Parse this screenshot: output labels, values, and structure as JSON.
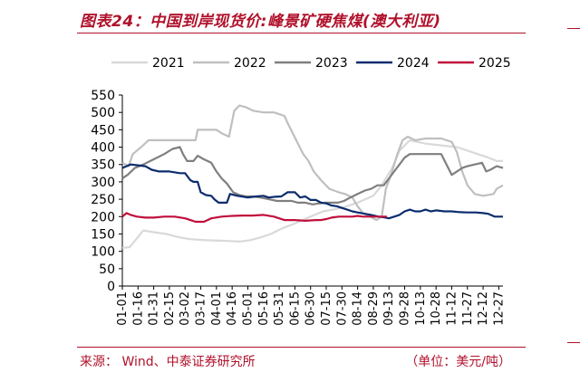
{
  "header": {
    "title": "图表24：中国到岸现货价:峰景矿硬焦煤(澳大利亚)"
  },
  "footer": {
    "source": "来源：  Wind、中泰证券研究所",
    "unit": "（单位：美元/吨）"
  },
  "colors": {
    "accent": "#b0112b",
    "s2021": "#d9d9d9",
    "s2022": "#bfbfbf",
    "s2023": "#7f7f7f",
    "s2024": "#0c2c6e",
    "s2025": "#c00f3c"
  },
  "chart_data": {
    "type": "line",
    "title": "",
    "xlabel": "",
    "ylabel": "",
    "ylim": [
      0,
      550
    ],
    "yticks": [
      0,
      50,
      100,
      150,
      200,
      250,
      300,
      350,
      400,
      450,
      500,
      550
    ],
    "x_tick_labels": [
      "01-01",
      "01-16",
      "01-31",
      "02-15",
      "03-02",
      "03-17",
      "04-01",
      "04-16",
      "05-01",
      "05-16",
      "05-31",
      "06-15",
      "06-30",
      "07-15",
      "07-30",
      "08-14",
      "08-29",
      "09-13",
      "09-28",
      "10-13",
      "10-28",
      "11-12",
      "11-27",
      "12-12",
      "12-27"
    ],
    "legend_position": "top",
    "grid": false,
    "series": [
      {
        "name": "2021",
        "color": "#d9d9d9",
        "points": [
          [
            0,
            110
          ],
          [
            7,
            112
          ],
          [
            12,
            130
          ],
          [
            20,
            160
          ],
          [
            30,
            155
          ],
          [
            42,
            150
          ],
          [
            55,
            140
          ],
          [
            65,
            135
          ],
          [
            80,
            132
          ],
          [
            100,
            130
          ],
          [
            112,
            128
          ],
          [
            122,
            132
          ],
          [
            132,
            140
          ],
          [
            142,
            150
          ],
          [
            152,
            165
          ],
          [
            165,
            180
          ],
          [
            180,
            200
          ],
          [
            192,
            215
          ],
          [
            210,
            225
          ],
          [
            225,
            240
          ],
          [
            240,
            260
          ],
          [
            248,
            290
          ],
          [
            258,
            340
          ],
          [
            265,
            390
          ],
          [
            275,
            420
          ],
          [
            290,
            410
          ],
          [
            305,
            405
          ],
          [
            320,
            400
          ],
          [
            335,
            385
          ],
          [
            350,
            370
          ],
          [
            358,
            360
          ],
          [
            364,
            360
          ]
        ]
      },
      {
        "name": "2022",
        "color": "#bfbfbf",
        "points": [
          [
            0,
            355
          ],
          [
            6,
            345
          ],
          [
            10,
            380
          ],
          [
            18,
            400
          ],
          [
            25,
            420
          ],
          [
            35,
            420
          ],
          [
            45,
            420
          ],
          [
            55,
            420
          ],
          [
            60,
            420
          ],
          [
            70,
            420
          ],
          [
            72,
            450
          ],
          [
            80,
            450
          ],
          [
            90,
            450
          ],
          [
            95,
            440
          ],
          [
            102,
            430
          ],
          [
            107,
            505
          ],
          [
            112,
            520
          ],
          [
            118,
            515
          ],
          [
            125,
            505
          ],
          [
            135,
            500
          ],
          [
            145,
            500
          ],
          [
            155,
            490
          ],
          [
            158,
            470
          ],
          [
            163,
            440
          ],
          [
            168,
            410
          ],
          [
            173,
            380
          ],
          [
            178,
            360
          ],
          [
            183,
            330
          ],
          [
            190,
            305
          ],
          [
            198,
            280
          ],
          [
            207,
            270
          ],
          [
            213,
            265
          ],
          [
            220,
            255
          ],
          [
            225,
            230
          ],
          [
            230,
            210
          ],
          [
            237,
            200
          ],
          [
            243,
            190
          ],
          [
            248,
            200
          ],
          [
            252,
            280
          ],
          [
            258,
            330
          ],
          [
            263,
            380
          ],
          [
            268,
            420
          ],
          [
            273,
            430
          ],
          [
            280,
            420
          ],
          [
            290,
            425
          ],
          [
            305,
            425
          ],
          [
            315,
            415
          ],
          [
            320,
            385
          ],
          [
            325,
            330
          ],
          [
            330,
            290
          ],
          [
            337,
            265
          ],
          [
            345,
            260
          ],
          [
            355,
            265
          ],
          [
            358,
            280
          ],
          [
            364,
            290
          ]
        ]
      },
      {
        "name": "2023",
        "color": "#7f7f7f",
        "points": [
          [
            0,
            310
          ],
          [
            5,
            320
          ],
          [
            12,
            340
          ],
          [
            20,
            350
          ],
          [
            30,
            365
          ],
          [
            40,
            380
          ],
          [
            48,
            395
          ],
          [
            55,
            400
          ],
          [
            58,
            380
          ],
          [
            62,
            360
          ],
          [
            68,
            360
          ],
          [
            72,
            375
          ],
          [
            78,
            365
          ],
          [
            85,
            355
          ],
          [
            90,
            330
          ],
          [
            95,
            310
          ],
          [
            100,
            295
          ],
          [
            106,
            270
          ],
          [
            112,
            262
          ],
          [
            118,
            258
          ],
          [
            125,
            258
          ],
          [
            132,
            255
          ],
          [
            140,
            250
          ],
          [
            148,
            245
          ],
          [
            155,
            245
          ],
          [
            162,
            245
          ],
          [
            168,
            240
          ],
          [
            175,
            240
          ],
          [
            182,
            235
          ],
          [
            188,
            238
          ],
          [
            195,
            240
          ],
          [
            200,
            240
          ],
          [
            206,
            240
          ],
          [
            212,
            245
          ],
          [
            218,
            255
          ],
          [
            225,
            265
          ],
          [
            232,
            275
          ],
          [
            238,
            280
          ],
          [
            244,
            290
          ],
          [
            250,
            290
          ],
          [
            255,
            310
          ],
          [
            260,
            330
          ],
          [
            265,
            350
          ],
          [
            270,
            370
          ],
          [
            275,
            380
          ],
          [
            285,
            380
          ],
          [
            295,
            380
          ],
          [
            305,
            380
          ],
          [
            310,
            350
          ],
          [
            315,
            320
          ],
          [
            320,
            330
          ],
          [
            325,
            340
          ],
          [
            330,
            345
          ],
          [
            337,
            350
          ],
          [
            344,
            355
          ],
          [
            348,
            330
          ],
          [
            352,
            335
          ],
          [
            358,
            345
          ],
          [
            364,
            340
          ]
        ]
      },
      {
        "name": "2024",
        "color": "#0c2c6e",
        "points": [
          [
            0,
            340
          ],
          [
            4,
            345
          ],
          [
            8,
            350
          ],
          [
            14,
            348
          ],
          [
            22,
            345
          ],
          [
            28,
            335
          ],
          [
            35,
            330
          ],
          [
            45,
            330
          ],
          [
            55,
            325
          ],
          [
            60,
            325
          ],
          [
            65,
            305
          ],
          [
            68,
            300
          ],
          [
            72,
            300
          ],
          [
            75,
            270
          ],
          [
            80,
            262
          ],
          [
            85,
            260
          ],
          [
            88,
            250
          ],
          [
            92,
            240
          ],
          [
            97,
            240
          ],
          [
            100,
            240
          ],
          [
            103,
            265
          ],
          [
            110,
            260
          ],
          [
            120,
            255
          ],
          [
            128,
            258
          ],
          [
            135,
            260
          ],
          [
            140,
            255
          ],
          [
            146,
            257
          ],
          [
            152,
            258
          ],
          [
            158,
            270
          ],
          [
            165,
            270
          ],
          [
            170,
            255
          ],
          [
            175,
            258
          ],
          [
            180,
            248
          ],
          [
            185,
            248
          ],
          [
            190,
            240
          ],
          [
            195,
            238
          ],
          [
            200,
            232
          ],
          [
            205,
            230
          ],
          [
            210,
            225
          ],
          [
            215,
            220
          ],
          [
            220,
            215
          ],
          [
            225,
            212
          ],
          [
            232,
            208
          ],
          [
            238,
            205
          ],
          [
            245,
            200
          ],
          [
            250,
            198
          ],
          [
            255,
            195
          ],
          [
            260,
            200
          ],
          [
            265,
            205
          ],
          [
            270,
            215
          ],
          [
            275,
            220
          ],
          [
            280,
            215
          ],
          [
            285,
            215
          ],
          [
            290,
            220
          ],
          [
            295,
            215
          ],
          [
            300,
            218
          ],
          [
            308,
            215
          ],
          [
            315,
            215
          ],
          [
            322,
            213
          ],
          [
            330,
            212
          ],
          [
            338,
            212
          ],
          [
            345,
            210
          ],
          [
            350,
            208
          ],
          [
            356,
            200
          ],
          [
            364,
            200
          ]
        ]
      },
      {
        "name": "2025",
        "color": "#c00f3c",
        "points": [
          [
            0,
            200
          ],
          [
            4,
            210
          ],
          [
            8,
            205
          ],
          [
            14,
            200
          ],
          [
            22,
            197
          ],
          [
            30,
            197
          ],
          [
            40,
            200
          ],
          [
            50,
            200
          ],
          [
            60,
            195
          ],
          [
            65,
            190
          ],
          [
            70,
            185
          ],
          [
            74,
            185
          ],
          [
            78,
            185
          ],
          [
            85,
            195
          ],
          [
            95,
            200
          ],
          [
            105,
            202
          ],
          [
            115,
            203
          ],
          [
            125,
            203
          ],
          [
            135,
            205
          ],
          [
            145,
            200
          ],
          [
            155,
            190
          ],
          [
            165,
            190
          ],
          [
            175,
            188
          ],
          [
            185,
            190
          ],
          [
            190,
            190
          ],
          [
            195,
            193
          ],
          [
            200,
            197
          ],
          [
            207,
            200
          ],
          [
            212,
            200
          ],
          [
            220,
            200
          ],
          [
            225,
            202
          ],
          [
            230,
            200
          ],
          [
            235,
            200
          ],
          [
            240,
            200
          ],
          [
            245,
            200
          ],
          [
            250,
            200
          ],
          [
            253,
            200
          ]
        ]
      }
    ]
  }
}
